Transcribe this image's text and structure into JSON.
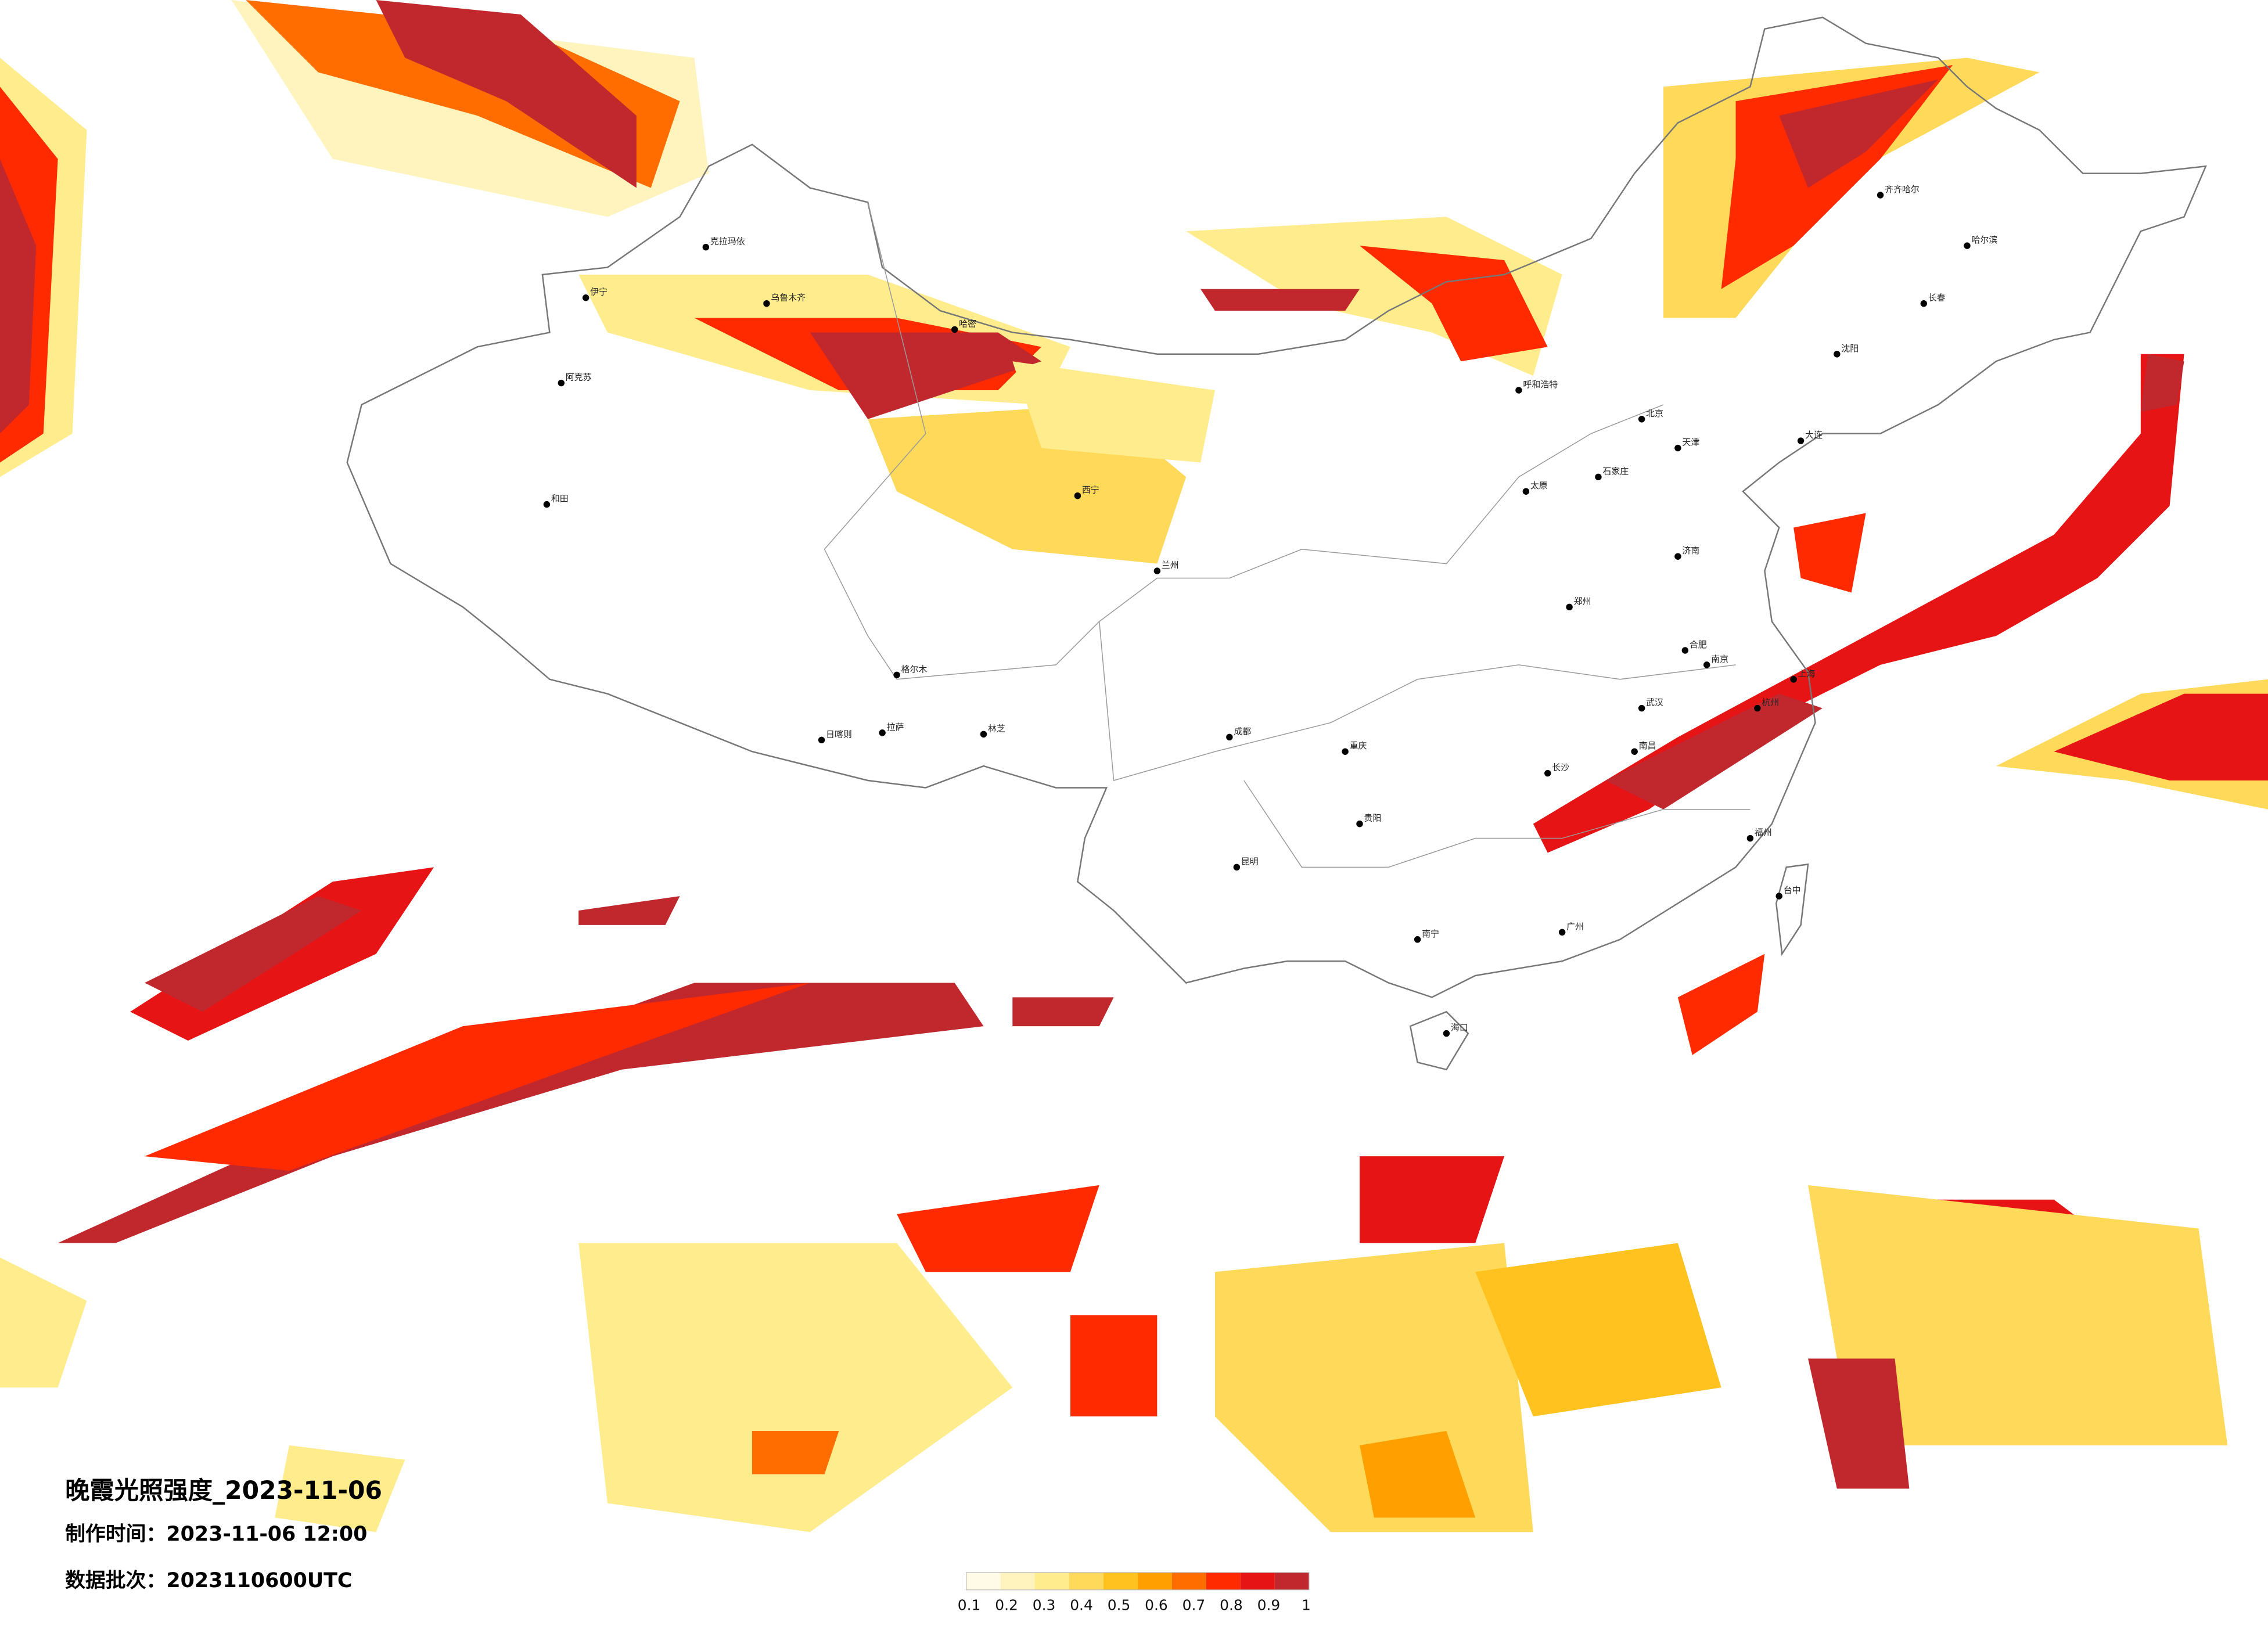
{
  "title": "晚霞光照强度_2023-11-06",
  "production_time": "制作时间：2023-11-06 12:00",
  "data_batch": "数据批次：2023110600UTC",
  "colorbar": {
    "ticks": [
      0.1,
      0.2,
      0.3,
      0.4,
      0.5,
      0.6,
      0.7,
      0.8,
      0.9,
      1
    ],
    "colors": [
      "#fffbe6",
      "#fff4bd",
      "#ffec8c",
      "#ffd95a",
      "#ffc21f",
      "#ffa000",
      "#ff6c00",
      "#ff2a00",
      "#e61414",
      "#c0282e"
    ]
  },
  "cities": [
    "克拉玛依",
    "伊宁",
    "阿克苏",
    "和田",
    "哈密",
    "乌鲁木齐",
    "格尔木",
    "拉萨",
    "日喀则",
    "林芝",
    "西宁",
    "兰州",
    "呼和浩特",
    "北京",
    "天津",
    "石家庄",
    "太原",
    "郑州",
    "武汉",
    "长沙",
    "南京",
    "上海",
    "杭州",
    "福州",
    "广州",
    "南宁",
    "海口",
    "昆明",
    "贵阳",
    "重庆",
    "哈尔滨",
    "长春",
    "沈阳",
    "大连",
    "齐齐哈尔",
    "台中",
    "济南",
    "合肥",
    "南昌",
    "成都"
  ]
}
